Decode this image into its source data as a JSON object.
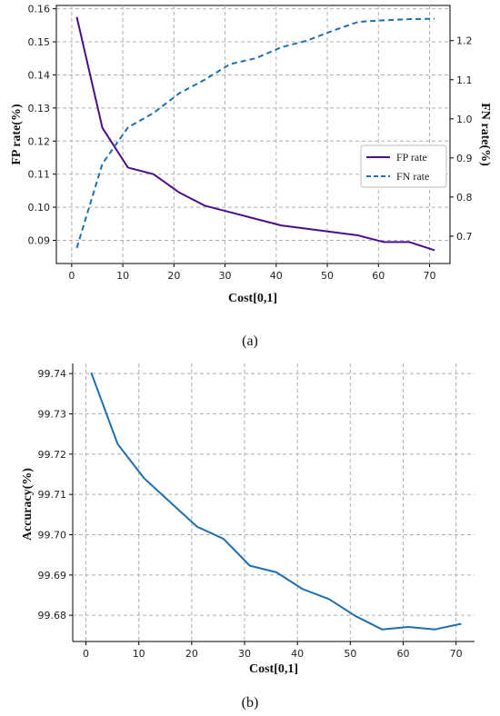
{
  "chart_data": [
    {
      "type": "line",
      "caption": "(a)",
      "xlabel": "Cost[0,1]",
      "ylabel": "FP rate(%)",
      "ylabel_right": "FN rate(%)",
      "xlim": [
        -3,
        74
      ],
      "ylim": [
        0.083,
        0.161
      ],
      "ylim_right": [
        0.63,
        1.29
      ],
      "xticks": [
        0,
        10,
        20,
        30,
        40,
        50,
        60,
        70
      ],
      "yticks": [
        0.09,
        0.1,
        0.11,
        0.12,
        0.13,
        0.14,
        0.15,
        0.16
      ],
      "yticks_right": [
        0.7,
        0.8,
        0.9,
        1.0,
        1.1,
        1.2
      ],
      "grid": true,
      "legend": "center-right",
      "x": [
        1,
        6,
        11,
        16,
        21,
        26,
        31,
        36,
        41,
        46,
        51,
        56,
        61,
        66,
        71
      ],
      "series": [
        {
          "name": "FP rate",
          "axis": "left",
          "style": "solid",
          "color": "#4b0e8a",
          "values": [
            0.1575,
            0.124,
            0.112,
            0.11,
            0.1045,
            0.1005,
            0.0985,
            0.0965,
            0.0945,
            0.0935,
            0.0925,
            0.0915,
            0.0895,
            0.0895,
            0.087
          ]
        },
        {
          "name": "FN rate",
          "axis": "right",
          "style": "dashed",
          "color": "#1f6fb0",
          "values": [
            0.67,
            0.885,
            0.978,
            1.015,
            1.065,
            1.1,
            1.14,
            1.155,
            1.183,
            1.2,
            1.225,
            1.248,
            1.252,
            1.255,
            1.256
          ]
        }
      ]
    },
    {
      "type": "line",
      "caption": "(b)",
      "xlabel": "Cost[0,1]",
      "ylabel": "Accuracy(%)",
      "xlim": [
        -2.5,
        73.5
      ],
      "ylim": [
        99.6735,
        99.7425
      ],
      "xticks": [
        0,
        10,
        20,
        30,
        40,
        50,
        60,
        70
      ],
      "yticks": [
        99.68,
        99.69,
        99.7,
        99.71,
        99.72,
        99.73,
        99.74
      ],
      "grid": true,
      "x": [
        1,
        6,
        11,
        16,
        21,
        26,
        31,
        36,
        41,
        46,
        51,
        56,
        61,
        66,
        71
      ],
      "series": [
        {
          "axis": "left",
          "style": "solid",
          "color": "#1f6fb0",
          "values": [
            99.7402,
            99.7225,
            99.714,
            99.708,
            99.702,
            99.699,
            99.6923,
            99.6907,
            99.6865,
            99.684,
            99.6798,
            99.6765,
            99.6771,
            99.6765,
            99.6779
          ]
        }
      ]
    }
  ]
}
